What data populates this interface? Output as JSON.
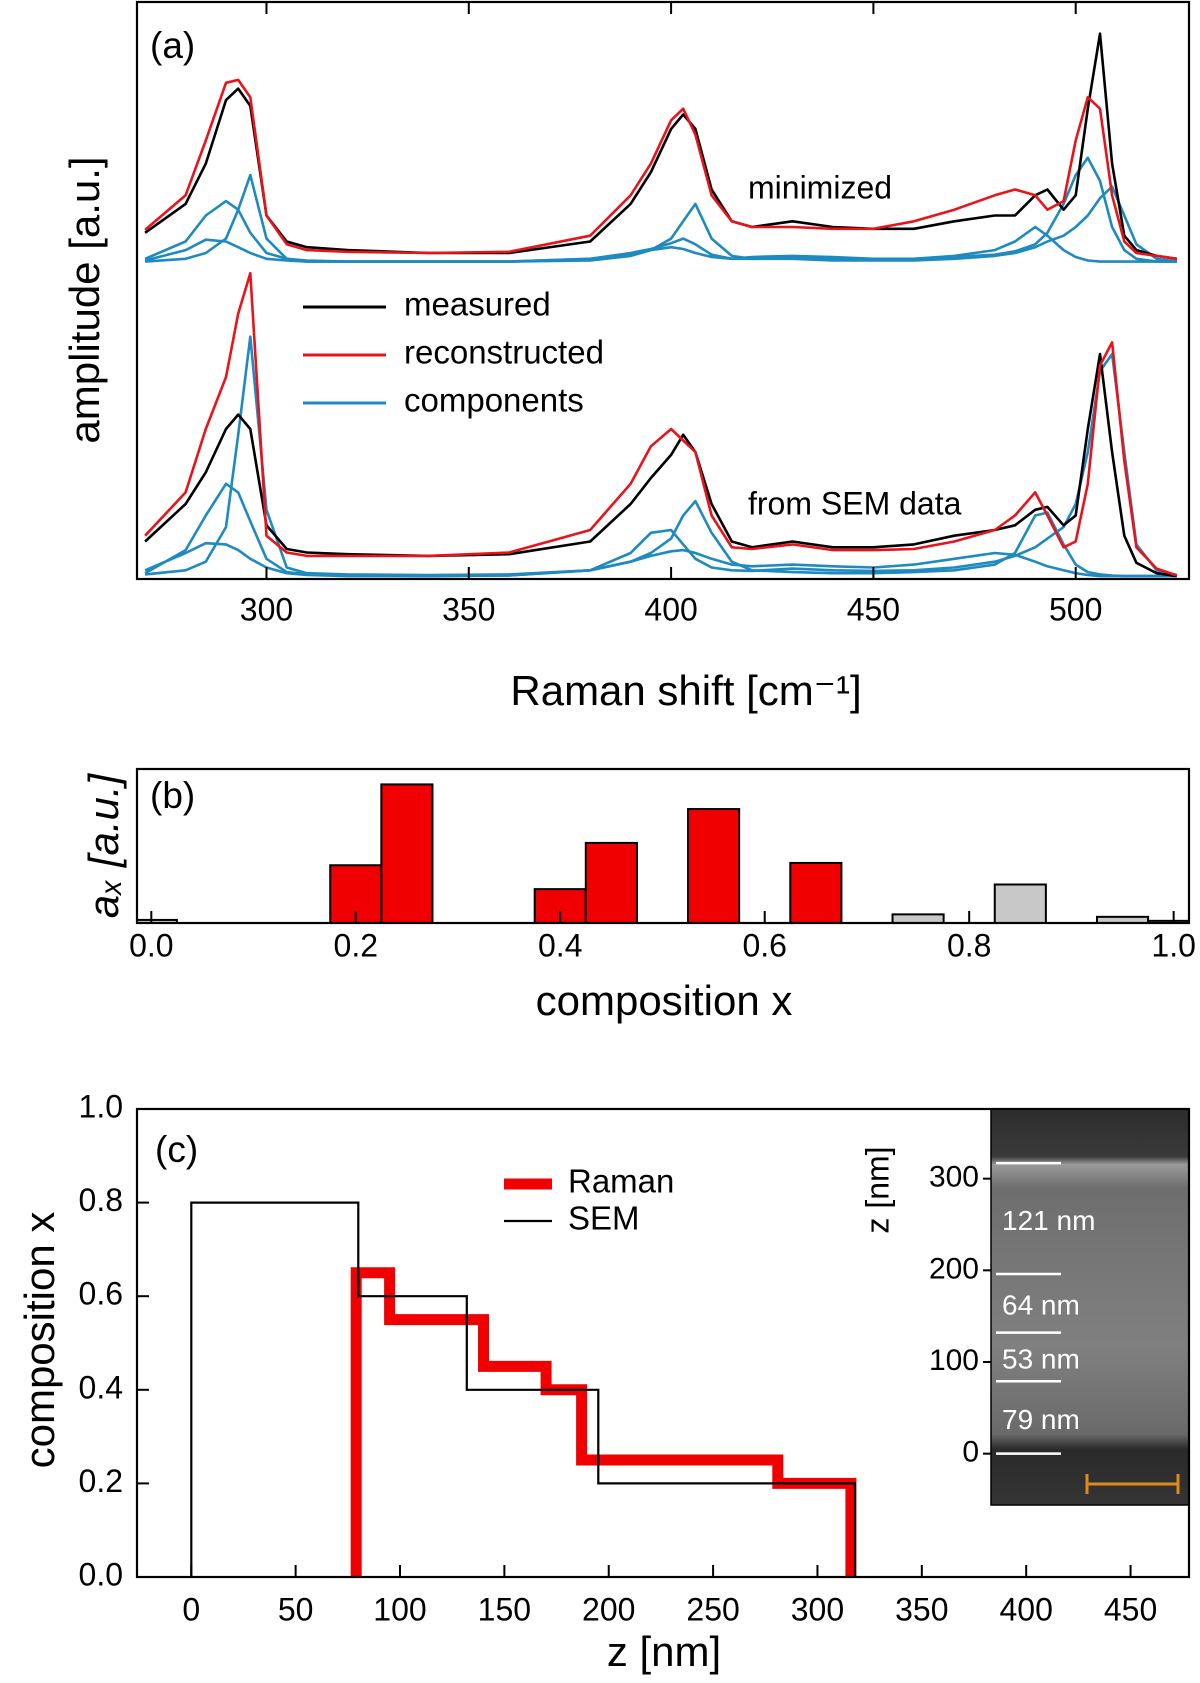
{
  "chart_data": [
    {
      "type": "line",
      "panel_label": "(a)",
      "annotations": [
        "minimized",
        "from SEM data"
      ],
      "xlabel": "Raman shift [cm⁻¹]",
      "ylabel": "amplitude [a.u.]",
      "xlim": [
        268,
        528
      ],
      "xticks": [
        300,
        350,
        400,
        450,
        500
      ],
      "ylim": [
        0,
        10
      ],
      "x": [
        270,
        280,
        285,
        290,
        293,
        296,
        300,
        305,
        310,
        320,
        340,
        360,
        380,
        390,
        395,
        400,
        403,
        406,
        410,
        415,
        420,
        430,
        440,
        450,
        460,
        470,
        480,
        485,
        490,
        493,
        497,
        500,
        503,
        506,
        509,
        512,
        515,
        520,
        525
      ],
      "series": [
        {
          "color": "#000000",
          "values": [
            6.0,
            6.5,
            7.2,
            8.3,
            8.5,
            8.2,
            6.3,
            5.85,
            5.75,
            5.7,
            5.65,
            5.65,
            5.85,
            6.5,
            7.05,
            7.8,
            8.05,
            7.8,
            6.75,
            6.2,
            6.1,
            6.2,
            6.1,
            6.07,
            6.07,
            6.2,
            6.3,
            6.3,
            6.65,
            6.75,
            6.4,
            6.65,
            8.15,
            9.45,
            7.2,
            5.95,
            5.7,
            5.6,
            5.55
          ]
        },
        {
          "color": "#e8141c",
          "values": [
            6.05,
            6.65,
            7.6,
            8.6,
            8.65,
            8.35,
            6.3,
            5.8,
            5.7,
            5.67,
            5.65,
            5.67,
            5.95,
            6.65,
            7.2,
            7.95,
            8.15,
            7.7,
            6.65,
            6.2,
            6.1,
            6.1,
            6.07,
            6.07,
            6.2,
            6.4,
            6.65,
            6.75,
            6.65,
            6.4,
            6.55,
            7.6,
            8.35,
            8.15,
            6.65,
            5.85,
            5.65,
            5.6,
            5.55
          ]
        },
        {
          "color": "#1f8ac0",
          "values": [
            5.5,
            5.55,
            5.65,
            5.9,
            6.4,
            7.0,
            5.9,
            5.55,
            5.5,
            5.5,
            5.5,
            5.5,
            5.52,
            5.6,
            5.7,
            5.9,
            6.2,
            6.5,
            5.9,
            5.6,
            5.55,
            5.55,
            5.52,
            5.52,
            5.52,
            5.55,
            5.6,
            5.65,
            5.75,
            5.85,
            5.95,
            6.1,
            6.3,
            6.6,
            6.8,
            6.3,
            5.8,
            5.55,
            5.5
          ]
        },
        {
          "color": "#1f8ac0",
          "values": [
            5.55,
            5.85,
            6.3,
            6.55,
            6.4,
            6.0,
            5.65,
            5.55,
            5.52,
            5.5,
            5.5,
            5.5,
            5.55,
            5.65,
            5.72,
            5.82,
            5.9,
            5.8,
            5.62,
            5.55,
            5.55,
            5.58,
            5.55,
            5.55,
            5.55,
            5.58,
            5.62,
            5.68,
            5.8,
            6.0,
            6.5,
            7.0,
            7.3,
            6.9,
            6.1,
            5.7,
            5.55,
            5.5,
            5.5
          ]
        },
        {
          "color": "#1f8ac0",
          "values": [
            5.52,
            5.7,
            5.88,
            5.85,
            5.75,
            5.65,
            5.55,
            5.52,
            5.5,
            5.5,
            5.5,
            5.5,
            5.55,
            5.62,
            5.7,
            5.75,
            5.72,
            5.65,
            5.58,
            5.55,
            5.58,
            5.6,
            5.58,
            5.55,
            5.55,
            5.6,
            5.7,
            5.85,
            6.1,
            5.95,
            5.7,
            5.58,
            5.52,
            5.5,
            5.5,
            5.5,
            5.5,
            5.5,
            5.5
          ]
        },
        {
          "name": "measured",
          "color": "#000000",
          "values": [
            0.65,
            1.3,
            1.85,
            2.6,
            2.85,
            2.6,
            0.93,
            0.52,
            0.46,
            0.43,
            0.4,
            0.43,
            0.65,
            1.3,
            1.75,
            2.15,
            2.5,
            2.2,
            1.3,
            0.65,
            0.55,
            0.65,
            0.55,
            0.55,
            0.6,
            0.75,
            0.85,
            0.93,
            1.2,
            1.25,
            0.93,
            1.1,
            2.6,
            3.9,
            2.2,
            0.75,
            0.28,
            0.1,
            0.05
          ]
        },
        {
          "name": "reconstructed",
          "color": "#e8141c",
          "values": [
            0.75,
            1.5,
            2.6,
            3.5,
            4.6,
            5.3,
            0.75,
            0.46,
            0.4,
            0.4,
            0.4,
            0.46,
            0.85,
            1.65,
            2.3,
            2.6,
            2.4,
            2.2,
            1.1,
            0.55,
            0.52,
            0.6,
            0.5,
            0.5,
            0.52,
            0.65,
            0.85,
            1.1,
            1.5,
            1.1,
            0.55,
            0.65,
            1.65,
            3.7,
            4.1,
            2.05,
            0.55,
            0.18,
            0.06
          ]
        },
        {
          "name": "components",
          "color": "#1f8ac0",
          "values": [
            0.08,
            0.15,
            0.3,
            0.9,
            2.5,
            4.2,
            1.2,
            0.2,
            0.1,
            0.08,
            0.07,
            0.08,
            0.15,
            0.3,
            0.45,
            0.7,
            1.1,
            1.35,
            0.8,
            0.3,
            0.15,
            0.12,
            0.1,
            0.1,
            0.12,
            0.15,
            0.25,
            0.45,
            1.1,
            1.15,
            0.6,
            0.25,
            0.12,
            0.08,
            0.06,
            0.05,
            0.05,
            0.05,
            0.05
          ]
        },
        {
          "color": "#1f8ac0",
          "values": [
            0.1,
            0.5,
            1.1,
            1.65,
            1.5,
            1.0,
            0.35,
            0.12,
            0.08,
            0.06,
            0.05,
            0.06,
            0.15,
            0.45,
            0.8,
            0.85,
            0.6,
            0.35,
            0.2,
            0.15,
            0.14,
            0.18,
            0.15,
            0.14,
            0.15,
            0.2,
            0.3,
            0.4,
            0.55,
            0.7,
            0.9,
            1.3,
            2.2,
            3.6,
            3.9,
            2.2,
            0.6,
            0.15,
            0.07
          ]
        },
        {
          "color": "#1f8ac0",
          "values": [
            0.15,
            0.45,
            0.62,
            0.6,
            0.5,
            0.35,
            0.2,
            0.1,
            0.07,
            0.05,
            0.05,
            0.06,
            0.15,
            0.3,
            0.4,
            0.48,
            0.5,
            0.45,
            0.35,
            0.25,
            0.22,
            0.25,
            0.22,
            0.2,
            0.25,
            0.35,
            0.45,
            0.42,
            0.3,
            0.22,
            0.15,
            0.1,
            0.07,
            0.05,
            0.05,
            0.05,
            0.05,
            0.05,
            0.05
          ]
        }
      ]
    },
    {
      "type": "bar",
      "panel_label": "(b)",
      "xlabel": "composition x",
      "ylabel": "aₓ [a.u.]",
      "xlim": [
        -0.014,
        1.015
      ],
      "ylim": [
        0,
        1
      ],
      "xticks": [
        {
          "value": 0,
          "label": "0.0"
        },
        0.2,
        0.4,
        0.6,
        0.8,
        {
          "value": 1,
          "label": "1.0"
        }
      ],
      "x": [
        0,
        0.2,
        0.25,
        0.4,
        0.45,
        0.55,
        0.65,
        0.75,
        0.85,
        0.95,
        1.0
      ],
      "values": [
        0.02,
        0.375,
        0.9,
        0.22,
        0.52,
        0.74,
        0.39,
        0.056,
        0.25,
        0.04,
        0.014
      ],
      "colors": [
        "#c8c8c8",
        "#f00000",
        "#f00000",
        "#f00000",
        "#f00000",
        "#f00000",
        "#f00000",
        "#c8c8c8",
        "#c8c8c8",
        "#c8c8c8",
        "#c8c8c8"
      ]
    },
    {
      "type": "line",
      "panel_label": "(c)",
      "xlabel": "z [nm]",
      "ylabel": "composition x",
      "xlim": [
        -26,
        478
      ],
      "xticks": [
        0,
        50,
        100,
        150,
        200,
        250,
        300,
        350,
        400,
        450
      ],
      "ylim": [
        0,
        1
      ],
      "yticks": [
        {
          "value": 0,
          "label": "0.0"
        },
        0.2,
        0.4,
        0.6,
        0.8,
        {
          "value": 1,
          "label": "1.0"
        }
      ],
      "series": [
        {
          "name": "Raman",
          "color": "#f00000",
          "x": [
            79,
            79,
            95,
            95,
            140,
            140,
            170,
            170,
            187,
            187,
            281,
            281,
            316,
            316
          ],
          "values": [
            0,
            0.65,
            0.65,
            0.55,
            0.55,
            0.45,
            0.45,
            0.4,
            0.4,
            0.25,
            0.25,
            0.2,
            0.2,
            0
          ]
        },
        {
          "name": "SEM",
          "color": "#000000",
          "x": [
            0,
            0,
            80,
            80,
            132,
            132,
            195,
            195,
            318,
            318
          ],
          "values": [
            0,
            0.8,
            0.8,
            0.6,
            0.6,
            0.4,
            0.4,
            0.2,
            0.2,
            0
          ]
        }
      ],
      "inset": {
        "ylabel": "z [nm]",
        "ylim": [
          -56,
          376
        ],
        "yticks": [
          0,
          100,
          200,
          300
        ],
        "boundaries": [
          0,
          79,
          132,
          196,
          317
        ],
        "layer_labels": [
          "79 nm",
          "53 nm",
          "64 nm",
          "121 nm"
        ]
      }
    }
  ]
}
